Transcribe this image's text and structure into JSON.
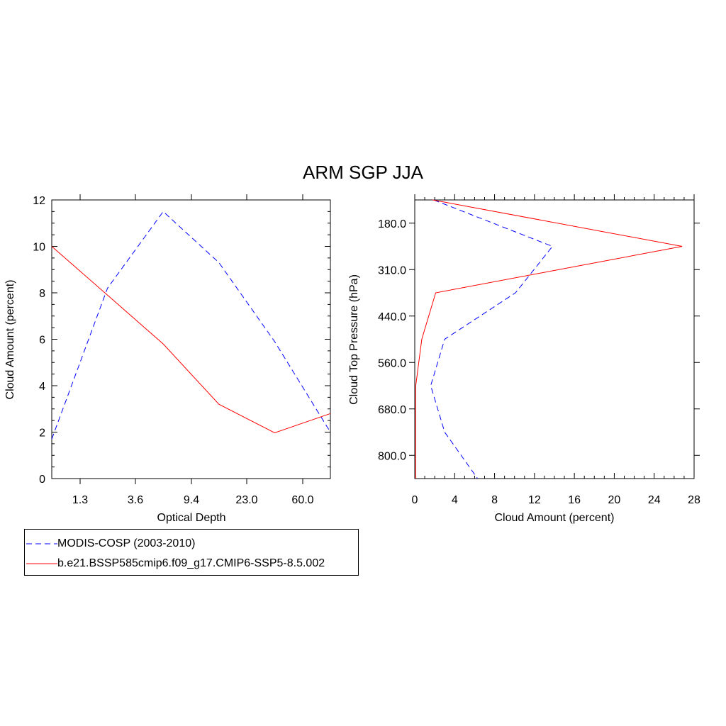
{
  "title": "ARM SGP JJA",
  "chart_data": [
    {
      "type": "line",
      "xlabel": "Optical Depth",
      "ylabel": "Cloud Amount (percent)",
      "x_ticklabels": [
        "1.3",
        "3.6",
        "9.4",
        "23.0",
        "60.0"
      ],
      "x_bins": [
        0,
        1,
        2,
        3,
        4,
        5,
        6
      ],
      "ylim": [
        0,
        12
      ],
      "y_ticks": [
        0,
        2,
        4,
        6,
        8,
        10,
        12
      ],
      "series": [
        {
          "name": "MODIS-COSP (2003-2010)",
          "color": "#0000ff",
          "dash": "dashed",
          "values": [
            1.7,
            8.2,
            11.5,
            9.3,
            5.9,
            2.0
          ]
        },
        {
          "name": "b.e21.BSSP585cmip6.f09_g17.CMIP6-SSP5-8.5.002",
          "color": "#ff0000",
          "dash": "solid",
          "values": [
            10.0,
            7.9,
            5.8,
            3.2,
            1.97,
            2.8
          ]
        }
      ]
    },
    {
      "type": "line",
      "xlabel": "Cloud Amount (percent)",
      "ylabel": "Cloud Top Pressure (hPa)",
      "xlim": [
        0,
        28
      ],
      "x_ticks": [
        0,
        4,
        8,
        12,
        16,
        20,
        24,
        28
      ],
      "y_ticklabels": [
        "180.0",
        "310.0",
        "440.0",
        "560.0",
        "680.0",
        "800.0"
      ],
      "y_bins": [
        0,
        1,
        2,
        3,
        4,
        5,
        6,
        7
      ],
      "series": [
        {
          "name": "MODIS-COSP (2003-2010)",
          "color": "#0000ff",
          "dash": "dashed",
          "values": [
            1.9,
            13.8,
            10.1,
            3.0,
            1.6,
            3.0,
            6.3
          ]
        },
        {
          "name": "b.e21.BSSP585cmip6.f09_g17.CMIP6-SSP5-8.5.002",
          "color": "#ff0000",
          "dash": "solid",
          "values": [
            1.8,
            26.8,
            2.1,
            0.7,
            0.1,
            0.1,
            0.1
          ]
        }
      ]
    }
  ],
  "legend": [
    {
      "label": "MODIS-COSP (2003-2010)",
      "color": "#0000ff",
      "dash": "dashed"
    },
    {
      "label": "b.e21.BSSP585cmip6.f09_g17.CMIP6-SSP5-8.5.002",
      "color": "#ff0000",
      "dash": "solid"
    }
  ]
}
